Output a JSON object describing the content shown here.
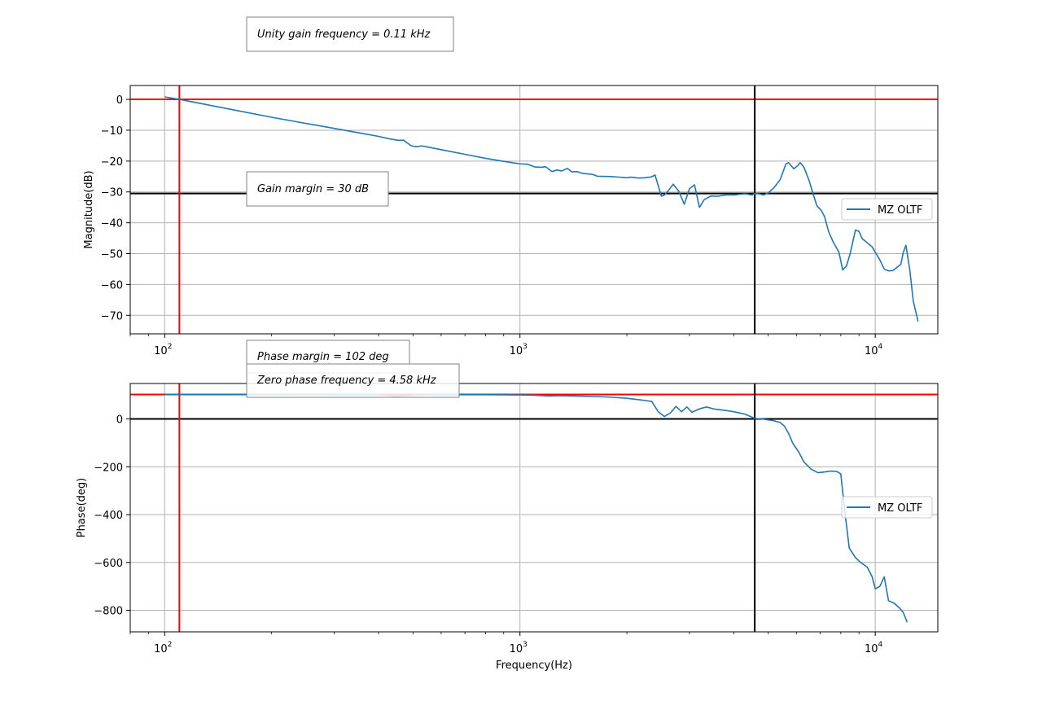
{
  "annotations": {
    "unity_gain": "Unity gain frequency = 0.11 kHz",
    "gain_margin": "Gain margin = 30 dB",
    "phase_margin": "Phase margin = 102 deg",
    "zero_phase": "Zero phase frequency = 4.58 kHz"
  },
  "colors": {
    "series": "#1f77b4",
    "marker_red": "#ff0000",
    "marker_black": "#000000",
    "grid": "#b0b0b0"
  },
  "chart_data": [
    {
      "type": "line",
      "x_scale": "log",
      "xlim": [
        80,
        15000
      ],
      "ylim": [
        -76,
        4.5
      ],
      "ylabel": "Magnitude(dB)",
      "xlabel": "",
      "grid": true,
      "legend_position": "center-right",
      "x_ticks": [
        100,
        1000,
        10000
      ],
      "x_tick_labels": [
        [
          "10",
          "2"
        ],
        [
          "10",
          "3"
        ],
        [
          "10",
          "4"
        ]
      ],
      "y_ticks": [
        0,
        -10,
        -20,
        -30,
        -40,
        -50,
        -60,
        -70
      ],
      "y_tick_labels": [
        "0",
        "−10",
        "−20",
        "−30",
        "−40",
        "−50",
        "−60",
        "−70"
      ],
      "hlines": [
        {
          "y": 0,
          "color": "red"
        },
        {
          "y": -30.5,
          "color": "black"
        }
      ],
      "vlines": [
        {
          "x": 110,
          "color": "red"
        },
        {
          "x": 4580,
          "color": "black"
        }
      ],
      "series": [
        {
          "name": "MZ OLTF",
          "points": [
            [
              100,
              0.8
            ],
            [
              110,
              0
            ],
            [
              150,
              -3
            ],
            [
              200,
              -5.8
            ],
            [
              250,
              -7.8
            ],
            [
              300,
              -9.4
            ],
            [
              350,
              -10.8
            ],
            [
              400,
              -12
            ],
            [
              430,
              -12.8
            ],
            [
              450,
              -13.2
            ],
            [
              460,
              -13.3
            ],
            [
              470,
              -13.2
            ],
            [
              480,
              -14
            ],
            [
              495,
              -15.1
            ],
            [
              510,
              -15.3
            ],
            [
              530,
              -15.1
            ],
            [
              560,
              -15.6
            ],
            [
              600,
              -16.3
            ],
            [
              700,
              -17.8
            ],
            [
              800,
              -19.1
            ],
            [
              900,
              -20.1
            ],
            [
              1000,
              -20.9
            ],
            [
              1050,
              -21
            ],
            [
              1100,
              -21.9
            ],
            [
              1150,
              -22
            ],
            [
              1180,
              -21.8
            ],
            [
              1230,
              -23.4
            ],
            [
              1270,
              -22.9
            ],
            [
              1310,
              -23.2
            ],
            [
              1360,
              -22.4
            ],
            [
              1400,
              -23.5
            ],
            [
              1450,
              -23.4
            ],
            [
              1500,
              -24
            ],
            [
              1600,
              -24.3
            ],
            [
              1650,
              -24.9
            ],
            [
              1800,
              -25
            ],
            [
              2000,
              -25.4
            ],
            [
              2050,
              -25.2
            ],
            [
              2150,
              -25.5
            ],
            [
              2250,
              -25.4
            ],
            [
              2350,
              -25.1
            ],
            [
              2400,
              -24.5
            ],
            [
              2500,
              -31.4
            ],
            [
              2550,
              -31
            ],
            [
              2620,
              -29.5
            ],
            [
              2700,
              -27.5
            ],
            [
              2800,
              -29.8
            ],
            [
              2900,
              -34
            ],
            [
              3000,
              -29
            ],
            [
              3100,
              -27.7
            ],
            [
              3200,
              -35
            ],
            [
              3300,
              -32.5
            ],
            [
              3450,
              -31.3
            ],
            [
              3600,
              -31.4
            ],
            [
              3800,
              -31
            ],
            [
              4000,
              -31
            ],
            [
              4300,
              -30.6
            ],
            [
              4500,
              -31
            ],
            [
              4580,
              -30.5
            ],
            [
              4700,
              -30.6
            ],
            [
              4850,
              -31
            ],
            [
              5000,
              -30.3
            ],
            [
              5200,
              -28.5
            ],
            [
              5400,
              -26
            ],
            [
              5500,
              -23.5
            ],
            [
              5600,
              -21
            ],
            [
              5700,
              -20.5
            ],
            [
              5800,
              -21.5
            ],
            [
              5900,
              -22.5
            ],
            [
              6050,
              -21.5
            ],
            [
              6150,
              -20.5
            ],
            [
              6300,
              -22
            ],
            [
              6500,
              -26
            ],
            [
              6700,
              -31
            ],
            [
              6850,
              -34.5
            ],
            [
              7050,
              -36
            ],
            [
              7200,
              -38
            ],
            [
              7400,
              -43
            ],
            [
              7600,
              -46
            ],
            [
              7900,
              -49.5
            ],
            [
              8100,
              -55.3
            ],
            [
              8300,
              -54
            ],
            [
              8500,
              -50
            ],
            [
              8800,
              -42.3
            ],
            [
              9000,
              -42.8
            ],
            [
              9200,
              -45.2
            ],
            [
              9500,
              -46.5
            ],
            [
              9800,
              -47.8
            ],
            [
              10000,
              -49.5
            ],
            [
              10300,
              -52
            ],
            [
              10600,
              -55
            ],
            [
              10900,
              -55.6
            ],
            [
              11200,
              -55.5
            ],
            [
              11500,
              -54.5
            ],
            [
              11800,
              -53.5
            ],
            [
              12000,
              -49.5
            ],
            [
              12200,
              -47.3
            ],
            [
              12500,
              -55
            ],
            [
              12800,
              -65.5
            ],
            [
              13200,
              -72
            ]
          ]
        }
      ]
    },
    {
      "type": "line",
      "x_scale": "log",
      "xlim": [
        80,
        15000
      ],
      "ylim": [
        -890,
        148
      ],
      "ylabel": "Phase(deg)",
      "xlabel": "Frequency(Hz)",
      "grid": true,
      "legend_position": "center-right",
      "x_ticks": [
        100,
        1000,
        10000
      ],
      "x_tick_labels": [
        [
          "10",
          "2"
        ],
        [
          "10",
          "3"
        ],
        [
          "10",
          "4"
        ]
      ],
      "y_ticks": [
        0,
        -200,
        -400,
        -600,
        -800
      ],
      "y_tick_labels": [
        "0",
        "−200",
        "−400",
        "−600",
        "−800"
      ],
      "hlines": [
        {
          "y": 102,
          "color": "red"
        },
        {
          "y": 0,
          "color": "black"
        }
      ],
      "vlines": [
        {
          "x": 110,
          "color": "red"
        },
        {
          "x": 4580,
          "color": "black"
        }
      ],
      "series": [
        {
          "name": "MZ OLTF",
          "points": [
            [
              100,
              102
            ],
            [
              200,
              102
            ],
            [
              300,
              101
            ],
            [
              400,
              101
            ],
            [
              420,
              98
            ],
            [
              450,
              95
            ],
            [
              480,
              97
            ],
            [
              500,
              100
            ],
            [
              550,
              101
            ],
            [
              600,
              101
            ],
            [
              700,
              101
            ],
            [
              800,
              101
            ],
            [
              900,
              100.5
            ],
            [
              1000,
              100
            ],
            [
              1100,
              99
            ],
            [
              1200,
              96
            ],
            [
              1300,
              97
            ],
            [
              1400,
              96
            ],
            [
              1500,
              95
            ],
            [
              1600,
              94
            ],
            [
              1800,
              91
            ],
            [
              2000,
              86
            ],
            [
              2200,
              79
            ],
            [
              2350,
              73
            ],
            [
              2450,
              30
            ],
            [
              2550,
              10
            ],
            [
              2650,
              25
            ],
            [
              2750,
              52
            ],
            [
              2850,
              30
            ],
            [
              2950,
              50
            ],
            [
              3050,
              28
            ],
            [
              3200,
              42
            ],
            [
              3350,
              50
            ],
            [
              3500,
              42
            ],
            [
              3800,
              35
            ],
            [
              4000,
              30
            ],
            [
              4300,
              20
            ],
            [
              4580,
              2
            ],
            [
              4800,
              0
            ],
            [
              5000,
              -4
            ],
            [
              5200,
              -8
            ],
            [
              5400,
              -15
            ],
            [
              5550,
              -30
            ],
            [
              5700,
              -60
            ],
            [
              5850,
              -100
            ],
            [
              6100,
              -140
            ],
            [
              6300,
              -180
            ],
            [
              6600,
              -210
            ],
            [
              6900,
              -225
            ],
            [
              7200,
              -222
            ],
            [
              7500,
              -218
            ],
            [
              7800,
              -220
            ],
            [
              8000,
              -230
            ],
            [
              8200,
              -380
            ],
            [
              8450,
              -540
            ],
            [
              8800,
              -580
            ],
            [
              9100,
              -600
            ],
            [
              9500,
              -620
            ],
            [
              9800,
              -660
            ],
            [
              10000,
              -710
            ],
            [
              10300,
              -700
            ],
            [
              10600,
              -660
            ],
            [
              10900,
              -760
            ],
            [
              11300,
              -770
            ],
            [
              11700,
              -790
            ],
            [
              12000,
              -810
            ],
            [
              12300,
              -850
            ]
          ]
        }
      ]
    }
  ]
}
